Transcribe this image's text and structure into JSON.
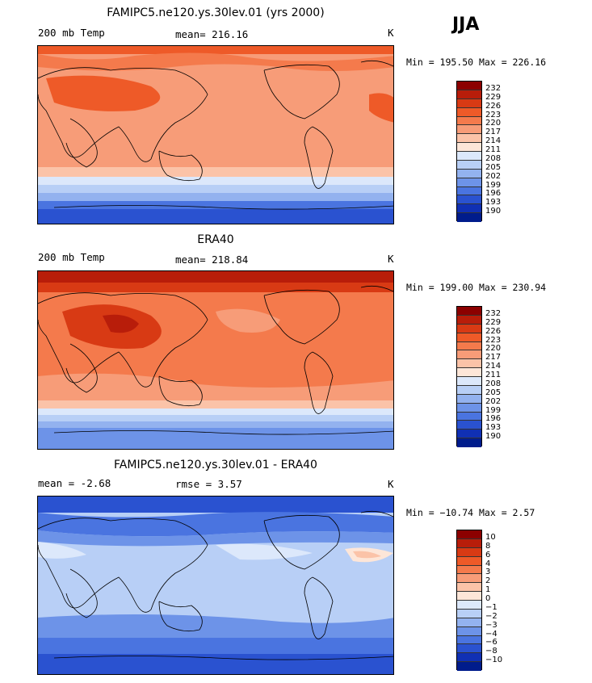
{
  "season": "JJA",
  "panels": [
    {
      "title": "FAMIPC5.ne120.ys.30lev.01 (yrs 2000)",
      "left_label": "200 mb Temp",
      "center_label": "mean= 216.16",
      "units": "K",
      "min_max": "Min = 195.50 Max = 226.16",
      "levels": [
        "232",
        "229",
        "226",
        "223",
        "220",
        "217",
        "214",
        "211",
        "208",
        "205",
        "202",
        "199",
        "196",
        "193",
        "190"
      ]
    },
    {
      "title": "ERA40",
      "left_label": "200 mb Temp",
      "center_label": "mean= 218.84",
      "units": "K",
      "min_max": "Min = 199.00 Max = 230.94",
      "levels": [
        "232",
        "229",
        "226",
        "223",
        "220",
        "217",
        "214",
        "211",
        "208",
        "205",
        "202",
        "199",
        "196",
        "193",
        "190"
      ]
    },
    {
      "title": "FAMIPC5.ne120.ys.30lev.01 - ERA40",
      "left_label": "mean =   -2.68",
      "center_label": "rmse =   3.57",
      "units": "K",
      "min_max": "Min = −10.74 Max =   2.57",
      "levels": [
        "10",
        "8",
        "6",
        "4",
        "3",
        "2",
        "1",
        "0",
        "−1",
        "−2",
        "−3",
        "−4",
        "−6",
        "−8",
        "−10"
      ]
    }
  ],
  "colorbar_colors": [
    "#8c0000",
    "#b81d0a",
    "#d83a14",
    "#ee5a28",
    "#f47a4c",
    "#f79c78",
    "#fbc3a8",
    "#fde6d8",
    "#dce8fb",
    "#b8cff6",
    "#93b2ef",
    "#6d93e8",
    "#4a74e0",
    "#2a52d0",
    "#1030b4",
    "#001c8c"
  ]
}
